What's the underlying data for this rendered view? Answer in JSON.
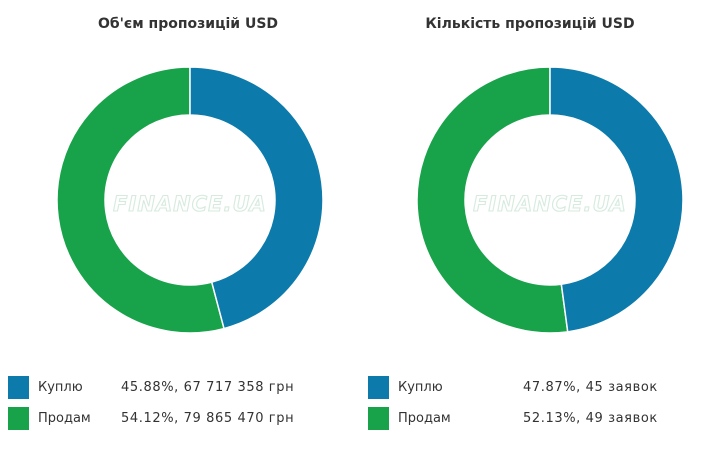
{
  "colors": {
    "buy": "#0c7aab",
    "sell": "#18a34a"
  },
  "watermark": "FINANCE.UA",
  "chart_data": [
    {
      "type": "pie",
      "donut": true,
      "title": "Об'єм пропозицій USD",
      "categories": [
        "Куплю",
        "Продам"
      ],
      "values": [
        45.88,
        54.12
      ],
      "legend": [
        {
          "label": "Куплю",
          "value": "45.88%, 67 717 358 грн"
        },
        {
          "label": "Продам",
          "value": "54.12%, 79 865 470 грн"
        }
      ],
      "legend_position": "bottom"
    },
    {
      "type": "pie",
      "donut": true,
      "title": "Кількість пропозицій USD",
      "categories": [
        "Куплю",
        "Продам"
      ],
      "values": [
        47.87,
        52.13
      ],
      "legend": [
        {
          "label": "Куплю",
          "value": "47.87%, 45 заявок"
        },
        {
          "label": "Продам",
          "value": "52.13%, 49 заявок"
        }
      ],
      "legend_position": "bottom"
    }
  ]
}
